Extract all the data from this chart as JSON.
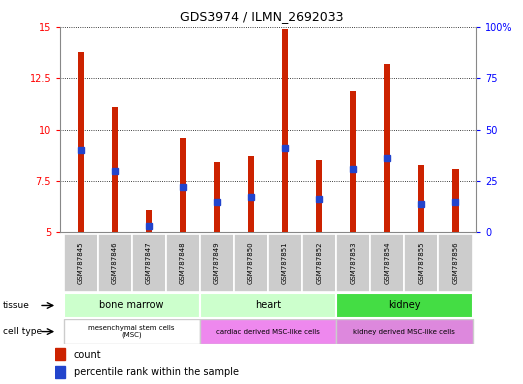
{
  "title": "GDS3974 / ILMN_2692033",
  "samples": [
    "GSM787845",
    "GSM787846",
    "GSM787847",
    "GSM787848",
    "GSM787849",
    "GSM787850",
    "GSM787851",
    "GSM787852",
    "GSM787853",
    "GSM787854",
    "GSM787855",
    "GSM787856"
  ],
  "red_values": [
    13.8,
    11.1,
    6.1,
    9.6,
    8.4,
    8.7,
    14.9,
    8.5,
    11.9,
    13.2,
    8.3,
    8.1
  ],
  "blue_values": [
    9.0,
    8.0,
    5.3,
    7.2,
    6.5,
    6.7,
    9.1,
    6.6,
    8.1,
    8.6,
    6.4,
    6.5
  ],
  "ylim_left": [
    5,
    15
  ],
  "ylim_right": [
    0,
    100
  ],
  "yticks_left": [
    5,
    7.5,
    10,
    12.5,
    15
  ],
  "yticks_right": [
    0,
    25,
    50,
    75,
    100
  ],
  "ytick_labels_left": [
    "5",
    "7.5",
    "10",
    "12.5",
    "15"
  ],
  "ytick_labels_right": [
    "0",
    "25",
    "50",
    "75",
    "100%"
  ],
  "tissue_groups": [
    {
      "label": "bone marrow",
      "start": 0,
      "end": 3,
      "color": "#ccffcc"
    },
    {
      "label": "heart",
      "start": 4,
      "end": 7,
      "color": "#ccffcc"
    },
    {
      "label": "kidney",
      "start": 8,
      "end": 11,
      "color": "#44dd44"
    }
  ],
  "celltype_groups": [
    {
      "label": "mesenchymal stem cells\n(MSC)",
      "start": 0,
      "end": 3,
      "color": "#ffffff"
    },
    {
      "label": "cardiac derived MSC-like cells",
      "start": 4,
      "end": 7,
      "color": "#ee88ee"
    },
    {
      "label": "kidney derived MSC-like cells",
      "start": 8,
      "end": 11,
      "color": "#dd88dd"
    }
  ],
  "bar_color": "#cc2200",
  "blue_color": "#2244cc",
  "background_color": "#ffffff",
  "bar_width": 0.18,
  "xlabels_bg": "#cccccc",
  "cell_border_color": "#aaaaaa"
}
